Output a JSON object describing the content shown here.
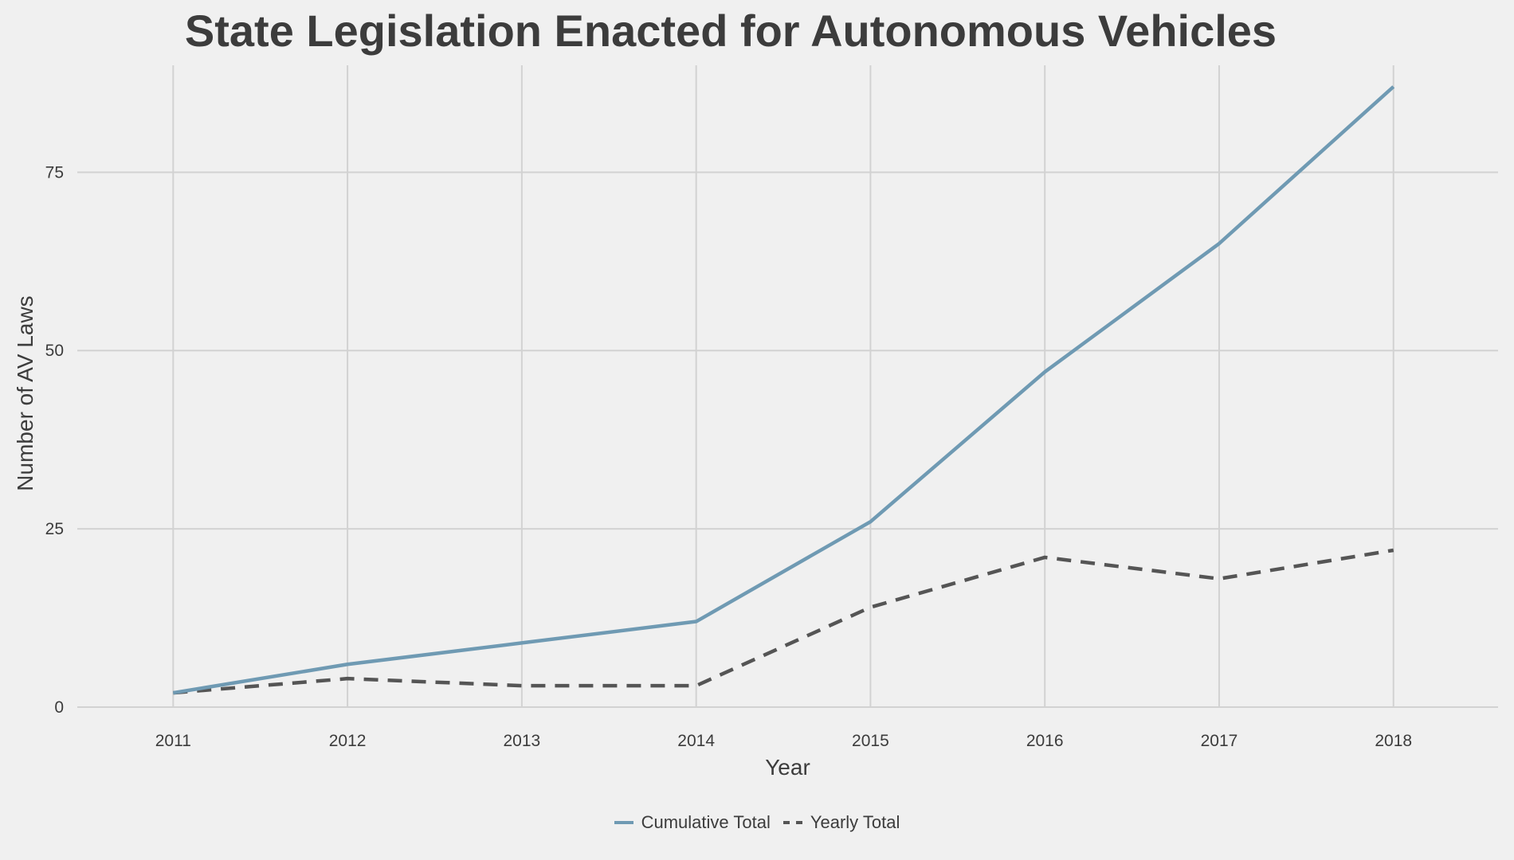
{
  "chart_data": {
    "type": "line",
    "title": "State Legislation Enacted for Autonomous Vehicles",
    "xlabel": "Year",
    "ylabel": "Number of AV Laws",
    "x": [
      2011,
      2012,
      2013,
      2014,
      2015,
      2016,
      2017,
      2018
    ],
    "x_tick_labels": [
      "2011",
      "2012",
      "2013",
      "2014",
      "2015",
      "2016",
      "2017",
      "2018"
    ],
    "y_tick_values": [
      0,
      25,
      50,
      75
    ],
    "y_tick_labels": [
      "0",
      "25",
      "50",
      "75"
    ],
    "ylim": [
      0,
      90
    ],
    "xlim": [
      2010.45,
      2018.6
    ],
    "grid": true,
    "legend_position": "bottom",
    "series": [
      {
        "name": "Cumulative Total",
        "values": [
          2,
          6,
          9,
          12,
          26,
          47,
          65,
          87
        ],
        "color": "#6f9ab3",
        "dash": "solid"
      },
      {
        "name": "Yearly Total",
        "values": [
          2,
          4,
          3,
          3,
          14,
          21,
          18,
          22
        ],
        "color": "#555555",
        "dash": "dashed"
      }
    ]
  }
}
